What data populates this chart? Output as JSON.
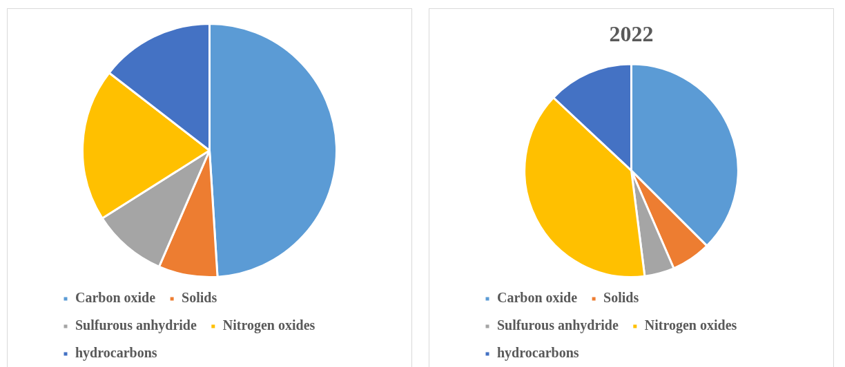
{
  "chart_data": [
    {
      "type": "pie",
      "categories": [
        "Carbon oxide",
        "Solids",
        "Sulfurous anhydride",
        "Nitrogen oxides",
        "hydrocarbons"
      ],
      "values": [
        49,
        7.5,
        9.5,
        19.5,
        14.5
      ],
      "colors": [
        "#5b9bd5",
        "#ed7d31",
        "#a5a5a5",
        "#ffc000",
        "#4472c4"
      ],
      "legend": "bottom"
    },
    {
      "type": "pie",
      "title": "2022",
      "categories": [
        "Carbon oxide",
        "Solids",
        "Sulfurous anhydride",
        "Nitrogen oxides",
        "hydrocarbons"
      ],
      "values": [
        37.5,
        6,
        4.5,
        39,
        13
      ],
      "colors": [
        "#5b9bd5",
        "#ed7d31",
        "#a5a5a5",
        "#ffc000",
        "#4472c4"
      ],
      "legend": "bottom"
    }
  ]
}
